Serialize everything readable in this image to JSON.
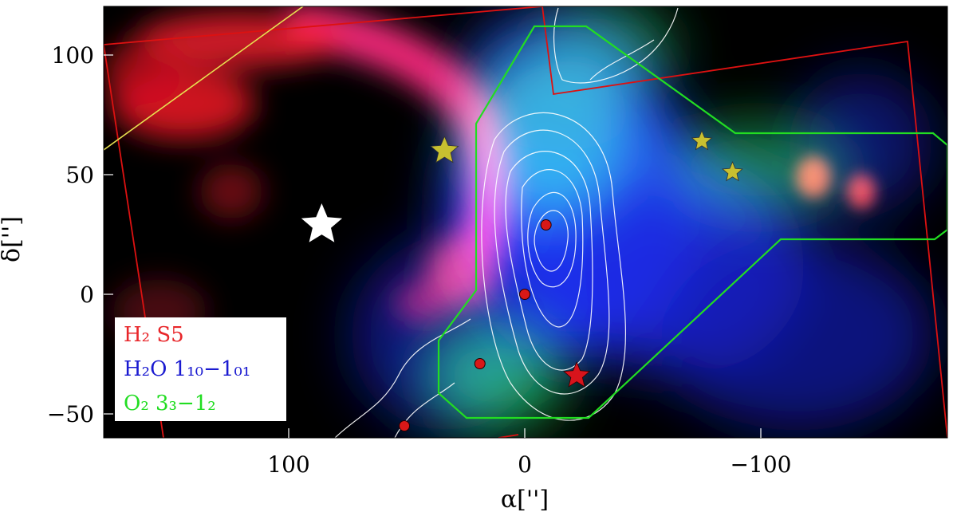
{
  "figure": {
    "x_axis": {
      "label": "α['']",
      "ticks": [
        {
          "value": 100,
          "label": "100"
        },
        {
          "value": 0,
          "label": "0"
        },
        {
          "value": -100,
          "label": "−100"
        }
      ]
    },
    "y_axis": {
      "label": "δ['']",
      "ticks": [
        {
          "value": 100,
          "label": "100"
        },
        {
          "value": 50,
          "label": "50"
        },
        {
          "value": 0,
          "label": "0"
        },
        {
          "value": -50,
          "label": "−50"
        }
      ]
    },
    "legend": {
      "placement": "bottom-left",
      "entries": [
        {
          "text": "H₂ S5",
          "color": "#e8262a"
        },
        {
          "text": "H₂O 1₁₀−1₀₁",
          "color": "#1a1ad0"
        },
        {
          "text": "O₂ 3₃−1₂",
          "color": "#22dd22"
        }
      ]
    },
    "colors": {
      "h2_channel": "#ff2030",
      "h2o_channel": "#2030ff",
      "o2_channel": "#20d040",
      "o2_footprint": "#22dd22",
      "survey_outline": "#dd1111",
      "yellow_line": "#e8e050",
      "contours": "#ffffff",
      "star_white": "#ffffff",
      "star_yellow": "#c8c030",
      "star_red": "#d8141c",
      "dots": "#d81818"
    },
    "markers": {
      "white_star": {
        "alpha": 86,
        "delta": 29
      },
      "yellow_stars": [
        {
          "alpha": 34,
          "delta": 60
        },
        {
          "alpha": -75,
          "delta": 64
        },
        {
          "alpha": -88,
          "delta": 51
        }
      ],
      "red_star": {
        "alpha": -22,
        "delta": -34
      },
      "red_dots": [
        {
          "alpha": -9,
          "delta": 29
        },
        {
          "alpha": 0,
          "delta": 0
        },
        {
          "alpha": 19,
          "delta": -29
        },
        {
          "alpha": 51,
          "delta": -55
        }
      ]
    }
  }
}
